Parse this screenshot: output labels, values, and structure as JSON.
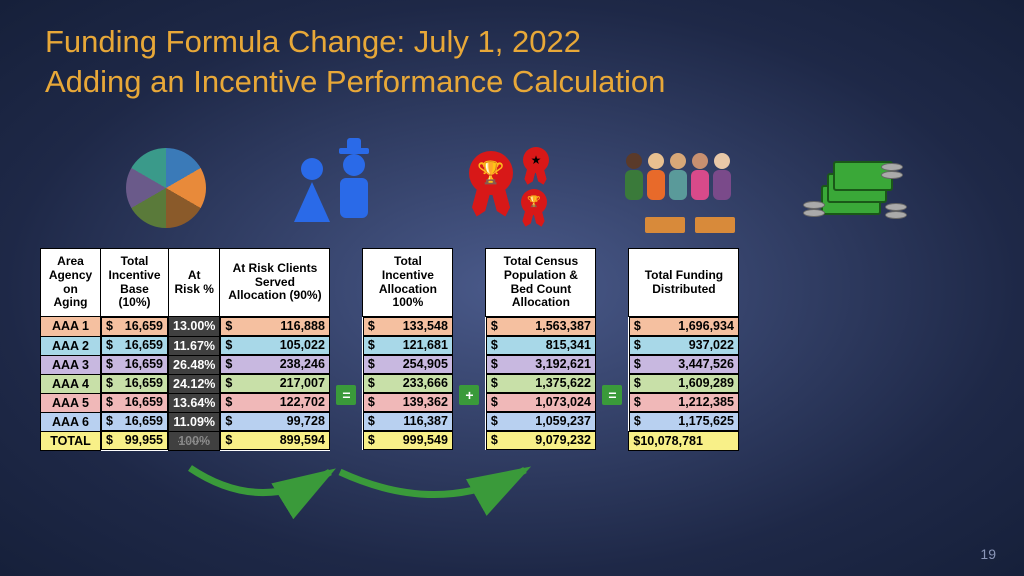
{
  "title_line1": "Funding Formula Change: July 1, 2022",
  "title_line2": "Adding an Incentive Performance Calculation",
  "page_number": "19",
  "row_colors": {
    "r1": "#f5c0a0",
    "r2": "#a8d8e8",
    "r3": "#c8b8e0",
    "r4": "#c8e0a8",
    "r5": "#f0b8b8",
    "r6": "#b8d0f0",
    "total": "#f8f088"
  },
  "atrisk_bg": "#404040",
  "atrisk_fg": "#ffffff",
  "headers": {
    "aaa": "Area Agency on Aging",
    "base": "Total Incentive Base (10%)",
    "risk": "At Risk %",
    "served": "At Risk Clients Served Allocation (90%)",
    "alloc100": "Total Incentive Allocation 100%",
    "census": "Total Census Population & Bed Count Allocation",
    "distributed": "Total Funding Distributed"
  },
  "rows": [
    {
      "label": "AAA 1",
      "base": "16,659",
      "risk": "13.00%",
      "served": "116,888",
      "alloc": "133,548",
      "census": "1,563,387",
      "dist": "1,696,934"
    },
    {
      "label": "AAA 2",
      "base": "16,659",
      "risk": "11.67%",
      "served": "105,022",
      "alloc": "121,681",
      "census": "815,341",
      "dist": "937,022"
    },
    {
      "label": "AAA 3",
      "base": "16,659",
      "risk": "26.48%",
      "served": "238,246",
      "alloc": "254,905",
      "census": "3,192,621",
      "dist": "3,447,526"
    },
    {
      "label": "AAA 4",
      "base": "16,659",
      "risk": "24.12%",
      "served": "217,007",
      "alloc": "233,666",
      "census": "1,375,622",
      "dist": "1,609,289"
    },
    {
      "label": "AAA 5",
      "base": "16,659",
      "risk": "13.64%",
      "served": "122,702",
      "alloc": "139,362",
      "census": "1,073,024",
      "dist": "1,212,385"
    },
    {
      "label": "AAA 6",
      "base": "16,659",
      "risk": "11.09%",
      "served": "99,728",
      "alloc": "116,387",
      "census": "1,059,237",
      "dist": "1,175,625"
    }
  ],
  "total": {
    "label": "TOTAL",
    "base": "99,955",
    "risk": "100%",
    "served": "899,594",
    "alloc": "999,549",
    "census": "9,079,232",
    "dist": "10,078,781"
  },
  "ops": {
    "eq1": "=",
    "plus": "+",
    "eq2": "="
  }
}
